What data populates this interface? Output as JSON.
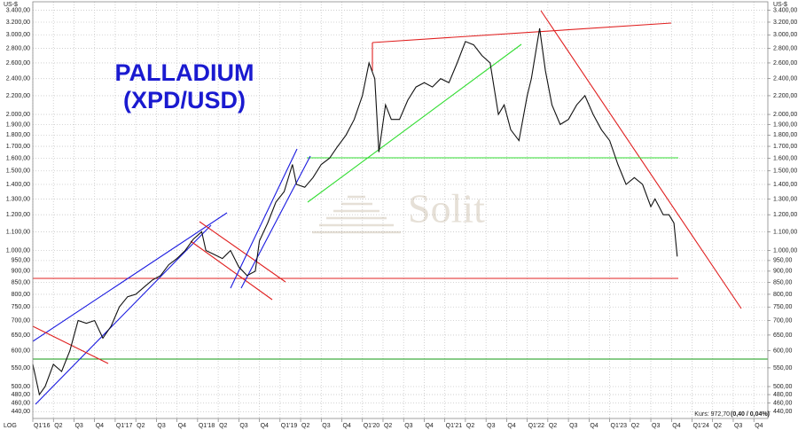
{
  "chart_data": {
    "type": "line",
    "title_line1": "PALLADIUM",
    "title_line2": "(XPD/USD)",
    "y_axis_unit": "US-$",
    "scale_label": "LOG",
    "price_label": "Kurs: 972,70",
    "change_label": "(0,40 / 0,04%)",
    "watermark": "Solit",
    "log_scale": true,
    "grid": true,
    "xlim": [
      2016,
      2024.92
    ],
    "ylim": [
      425,
      3550
    ],
    "xticks": [
      {
        "value": 2016,
        "label": "Q1'16"
      },
      {
        "value": 2016.25,
        "label": "Q2"
      },
      {
        "value": 2016.5,
        "label": "Q3"
      },
      {
        "value": 2016.75,
        "label": "Q4"
      },
      {
        "value": 2017,
        "label": "Q1'17"
      },
      {
        "value": 2017.25,
        "label": "Q2"
      },
      {
        "value": 2017.5,
        "label": "Q3"
      },
      {
        "value": 2017.75,
        "label": "Q4"
      },
      {
        "value": 2018,
        "label": "Q1'18"
      },
      {
        "value": 2018.25,
        "label": "Q2"
      },
      {
        "value": 2018.5,
        "label": "Q3"
      },
      {
        "value": 2018.75,
        "label": "Q4"
      },
      {
        "value": 2019,
        "label": "Q1'19"
      },
      {
        "value": 2019.25,
        "label": "Q2"
      },
      {
        "value": 2019.5,
        "label": "Q3"
      },
      {
        "value": 2019.75,
        "label": "Q4"
      },
      {
        "value": 2020,
        "label": "Q1'20"
      },
      {
        "value": 2020.25,
        "label": "Q2"
      },
      {
        "value": 2020.5,
        "label": "Q3"
      },
      {
        "value": 2020.75,
        "label": "Q4"
      },
      {
        "value": 2021,
        "label": "Q1'21"
      },
      {
        "value": 2021.25,
        "label": "Q2"
      },
      {
        "value": 2021.5,
        "label": "Q3"
      },
      {
        "value": 2021.75,
        "label": "Q4"
      },
      {
        "value": 2022,
        "label": "Q1'22"
      },
      {
        "value": 2022.25,
        "label": "Q2"
      },
      {
        "value": 2022.5,
        "label": "Q3"
      },
      {
        "value": 2022.75,
        "label": "Q4"
      },
      {
        "value": 2023,
        "label": "Q1'23"
      },
      {
        "value": 2023.25,
        "label": "Q2"
      },
      {
        "value": 2023.5,
        "label": "Q3"
      },
      {
        "value": 2023.75,
        "label": "Q4"
      },
      {
        "value": 2024,
        "label": "Q1'24"
      },
      {
        "value": 2024.25,
        "label": "Q2"
      },
      {
        "value": 2024.5,
        "label": "Q3"
      },
      {
        "value": 2024.75,
        "label": "Q4"
      }
    ],
    "yticks": [
      {
        "value": 3400,
        "label": "3.400,00"
      },
      {
        "value": 3200,
        "label": "3.200,00"
      },
      {
        "value": 3000,
        "label": "3.000,00"
      },
      {
        "value": 2800,
        "label": "2.800,00"
      },
      {
        "value": 2600,
        "label": "2.600,00"
      },
      {
        "value": 2400,
        "label": "2.400,00"
      },
      {
        "value": 2200,
        "label": "2.200,00"
      },
      {
        "value": 2000,
        "label": "2.000,00"
      },
      {
        "value": 1900,
        "label": "1.900,00"
      },
      {
        "value": 1800,
        "label": "1.800,00"
      },
      {
        "value": 1700,
        "label": "1.700,00"
      },
      {
        "value": 1600,
        "label": "1.600,00"
      },
      {
        "value": 1500,
        "label": "1.500,00"
      },
      {
        "value": 1400,
        "label": "1.400,00"
      },
      {
        "value": 1300,
        "label": "1.300,00"
      },
      {
        "value": 1200,
        "label": "1.200,00"
      },
      {
        "value": 1100,
        "label": "1.100,00"
      },
      {
        "value": 1000,
        "label": "1.000,00"
      },
      {
        "value": 950,
        "label": "950,00"
      },
      {
        "value": 900,
        "label": "900,00"
      },
      {
        "value": 850,
        "label": "850,00"
      },
      {
        "value": 800,
        "label": "800,00"
      },
      {
        "value": 750,
        "label": "750,00"
      },
      {
        "value": 700,
        "label": "700,00"
      },
      {
        "value": 650,
        "label": "650,00"
      },
      {
        "value": 600,
        "label": "600,00"
      },
      {
        "value": 550,
        "label": "550,00"
      },
      {
        "value": 500,
        "label": "500,00"
      },
      {
        "value": 480,
        "label": "480,00"
      },
      {
        "value": 460,
        "label": "460,00"
      },
      {
        "value": 440,
        "label": "440,00"
      }
    ],
    "x": [
      2016.0,
      2016.08,
      2016.15,
      2016.25,
      2016.35,
      2016.45,
      2016.55,
      2016.65,
      2016.75,
      2016.85,
      2016.95,
      2017.05,
      2017.15,
      2017.25,
      2017.35,
      2017.45,
      2017.55,
      2017.65,
      2017.75,
      2017.85,
      2017.95,
      2018.05,
      2018.1,
      2018.2,
      2018.3,
      2018.4,
      2018.5,
      2018.6,
      2018.7,
      2018.75,
      2018.85,
      2018.95,
      2019.05,
      2019.15,
      2019.2,
      2019.3,
      2019.4,
      2019.5,
      2019.6,
      2019.7,
      2019.8,
      2019.9,
      2020.0,
      2020.08,
      2020.15,
      2020.2,
      2020.28,
      2020.35,
      2020.45,
      2020.55,
      2020.65,
      2020.75,
      2020.85,
      2020.95,
      2021.05,
      2021.15,
      2021.25,
      2021.35,
      2021.45,
      2021.55,
      2021.65,
      2021.72,
      2021.8,
      2021.9,
      2022.0,
      2022.05,
      2022.15,
      2022.22,
      2022.3,
      2022.4,
      2022.5,
      2022.6,
      2022.7,
      2022.8,
      2022.9,
      2023.0,
      2023.1,
      2023.2,
      2023.3,
      2023.4,
      2023.5,
      2023.55,
      2023.6,
      2023.65,
      2023.72,
      2023.78,
      2023.82
    ],
    "series": [
      {
        "name": "XPD/USD",
        "color": "#111111",
        "values": [
          560,
          480,
          500,
          560,
          540,
          600,
          700,
          690,
          700,
          640,
          680,
          750,
          790,
          800,
          830,
          860,
          880,
          930,
          960,
          1000,
          1060,
          1100,
          1000,
          980,
          960,
          1000,
          920,
          880,
          900,
          1050,
          1150,
          1280,
          1350,
          1550,
          1400,
          1380,
          1450,
          1550,
          1600,
          1700,
          1800,
          1950,
          2200,
          2600,
          2400,
          1650,
          2100,
          1950,
          1950,
          2150,
          2300,
          2350,
          2300,
          2400,
          2350,
          2600,
          2900,
          2850,
          2700,
          2600,
          2000,
          2100,
          1850,
          1750,
          2200,
          2400,
          3100,
          2500,
          2100,
          1900,
          1950,
          2100,
          2200,
          2000,
          1850,
          1750,
          1550,
          1400,
          1450,
          1400,
          1250,
          1300,
          1250,
          1200,
          1200,
          1150,
          970
        ]
      }
    ]
  }
}
